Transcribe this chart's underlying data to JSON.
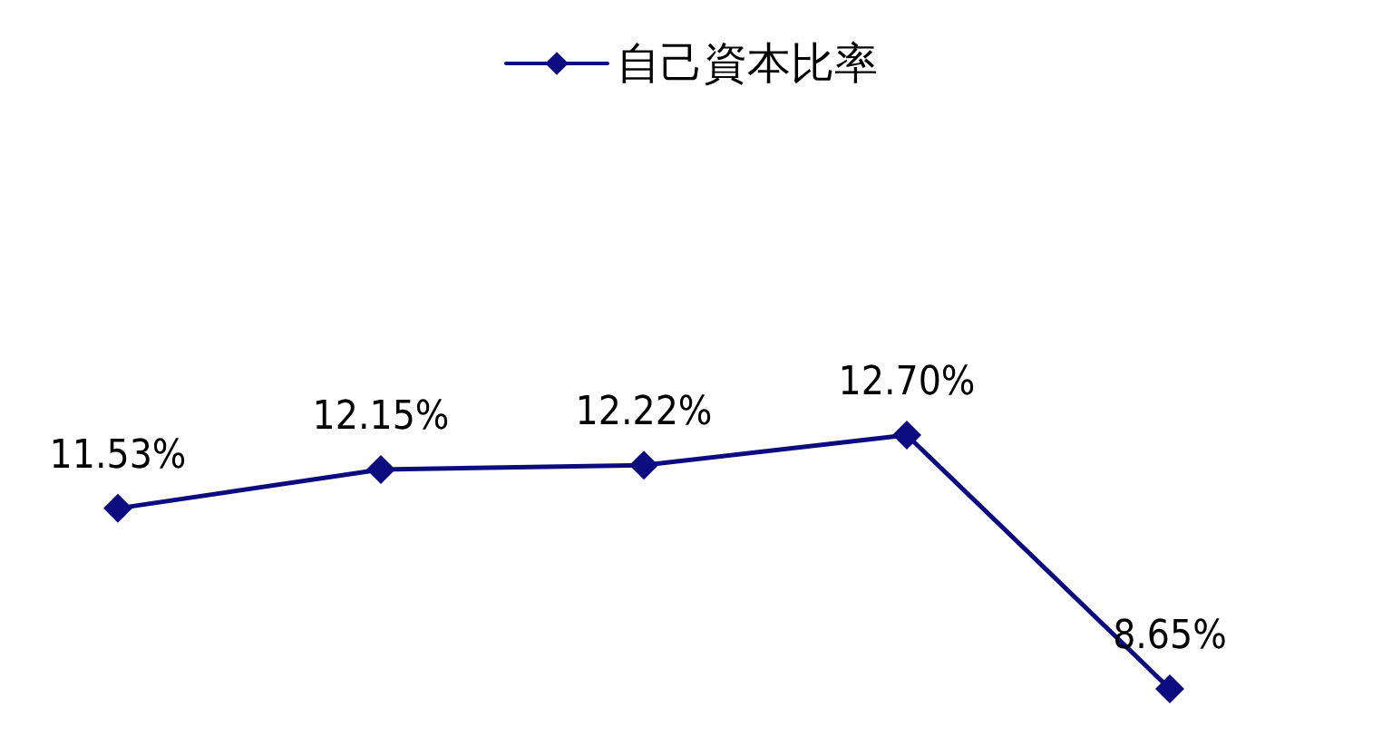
{
  "chart_data": {
    "type": "line",
    "categories": [
      null,
      null,
      null,
      null,
      null
    ],
    "series": [
      {
        "name": "自己資本比率",
        "color": "#0c0c80",
        "values": [
          11.53,
          12.15,
          12.22,
          12.7,
          8.65
        ],
        "value_labels": [
          "11.53%",
          "12.15%",
          "12.22%",
          "12.70%",
          "8.65%"
        ]
      }
    ],
    "marker": "diamond",
    "line_style": "solid",
    "legend": "top",
    "grid": false
  }
}
